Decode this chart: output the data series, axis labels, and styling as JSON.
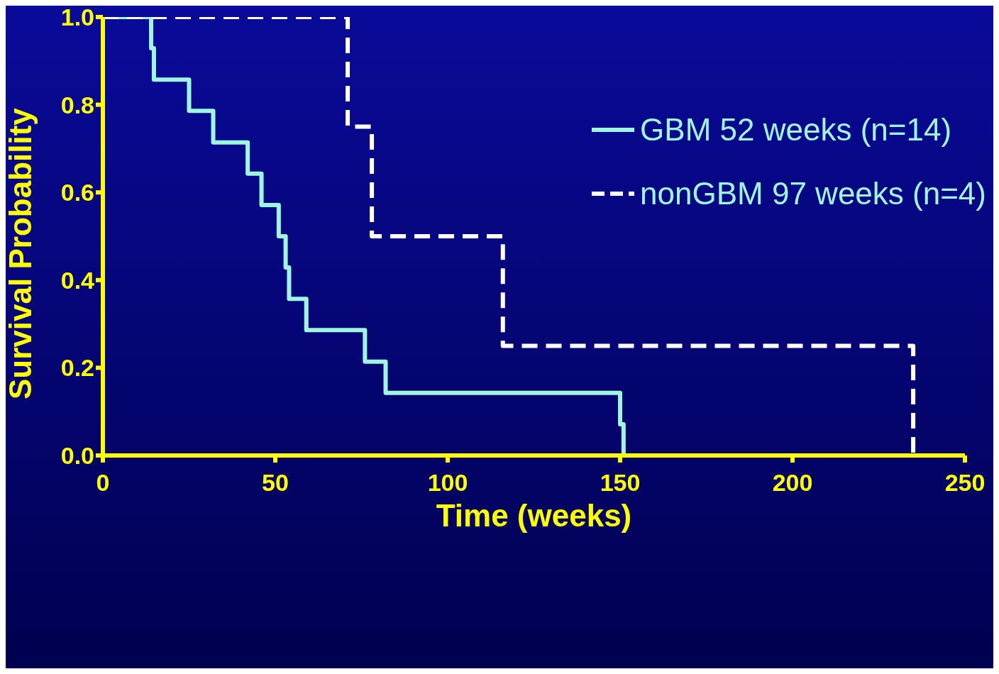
{
  "chart_data": {
    "type": "step",
    "xlabel": "Time (weeks)",
    "ylabel": "Survival Probability",
    "series": [
      {
        "name": "GBM 52 weeks (n=14)",
        "color": "#a0f5e0",
        "line_style": "solid",
        "x": [
          0,
          14,
          14.8,
          25,
          32,
          42,
          46,
          51,
          53,
          54,
          59,
          76,
          82,
          150,
          151
        ],
        "values": [
          1,
          0.929,
          0.857,
          0.786,
          0.714,
          0.643,
          0.571,
          0.5,
          0.429,
          0.357,
          0.286,
          0.214,
          0.143,
          0.071,
          0
        ]
      },
      {
        "name": "nonGBM 97 weeks (n=4)",
        "color": "#ffffff",
        "line_style": "dashed",
        "x": [
          0,
          71,
          78,
          116,
          235
        ],
        "values": [
          1,
          0.75,
          0.5,
          0.25,
          0
        ]
      }
    ],
    "xlim": [
      0,
      250
    ],
    "xticks": [
      0,
      50,
      100,
      150,
      200,
      250
    ],
    "ylim": [
      0,
      1
    ],
    "yticks": [
      {
        "value": 0,
        "label": "0.0"
      },
      0.2,
      0.4,
      0.6,
      0.8,
      {
        "value": 1,
        "label": "1.0"
      }
    ],
    "grid": false,
    "legend": "top right",
    "marker": "none"
  }
}
